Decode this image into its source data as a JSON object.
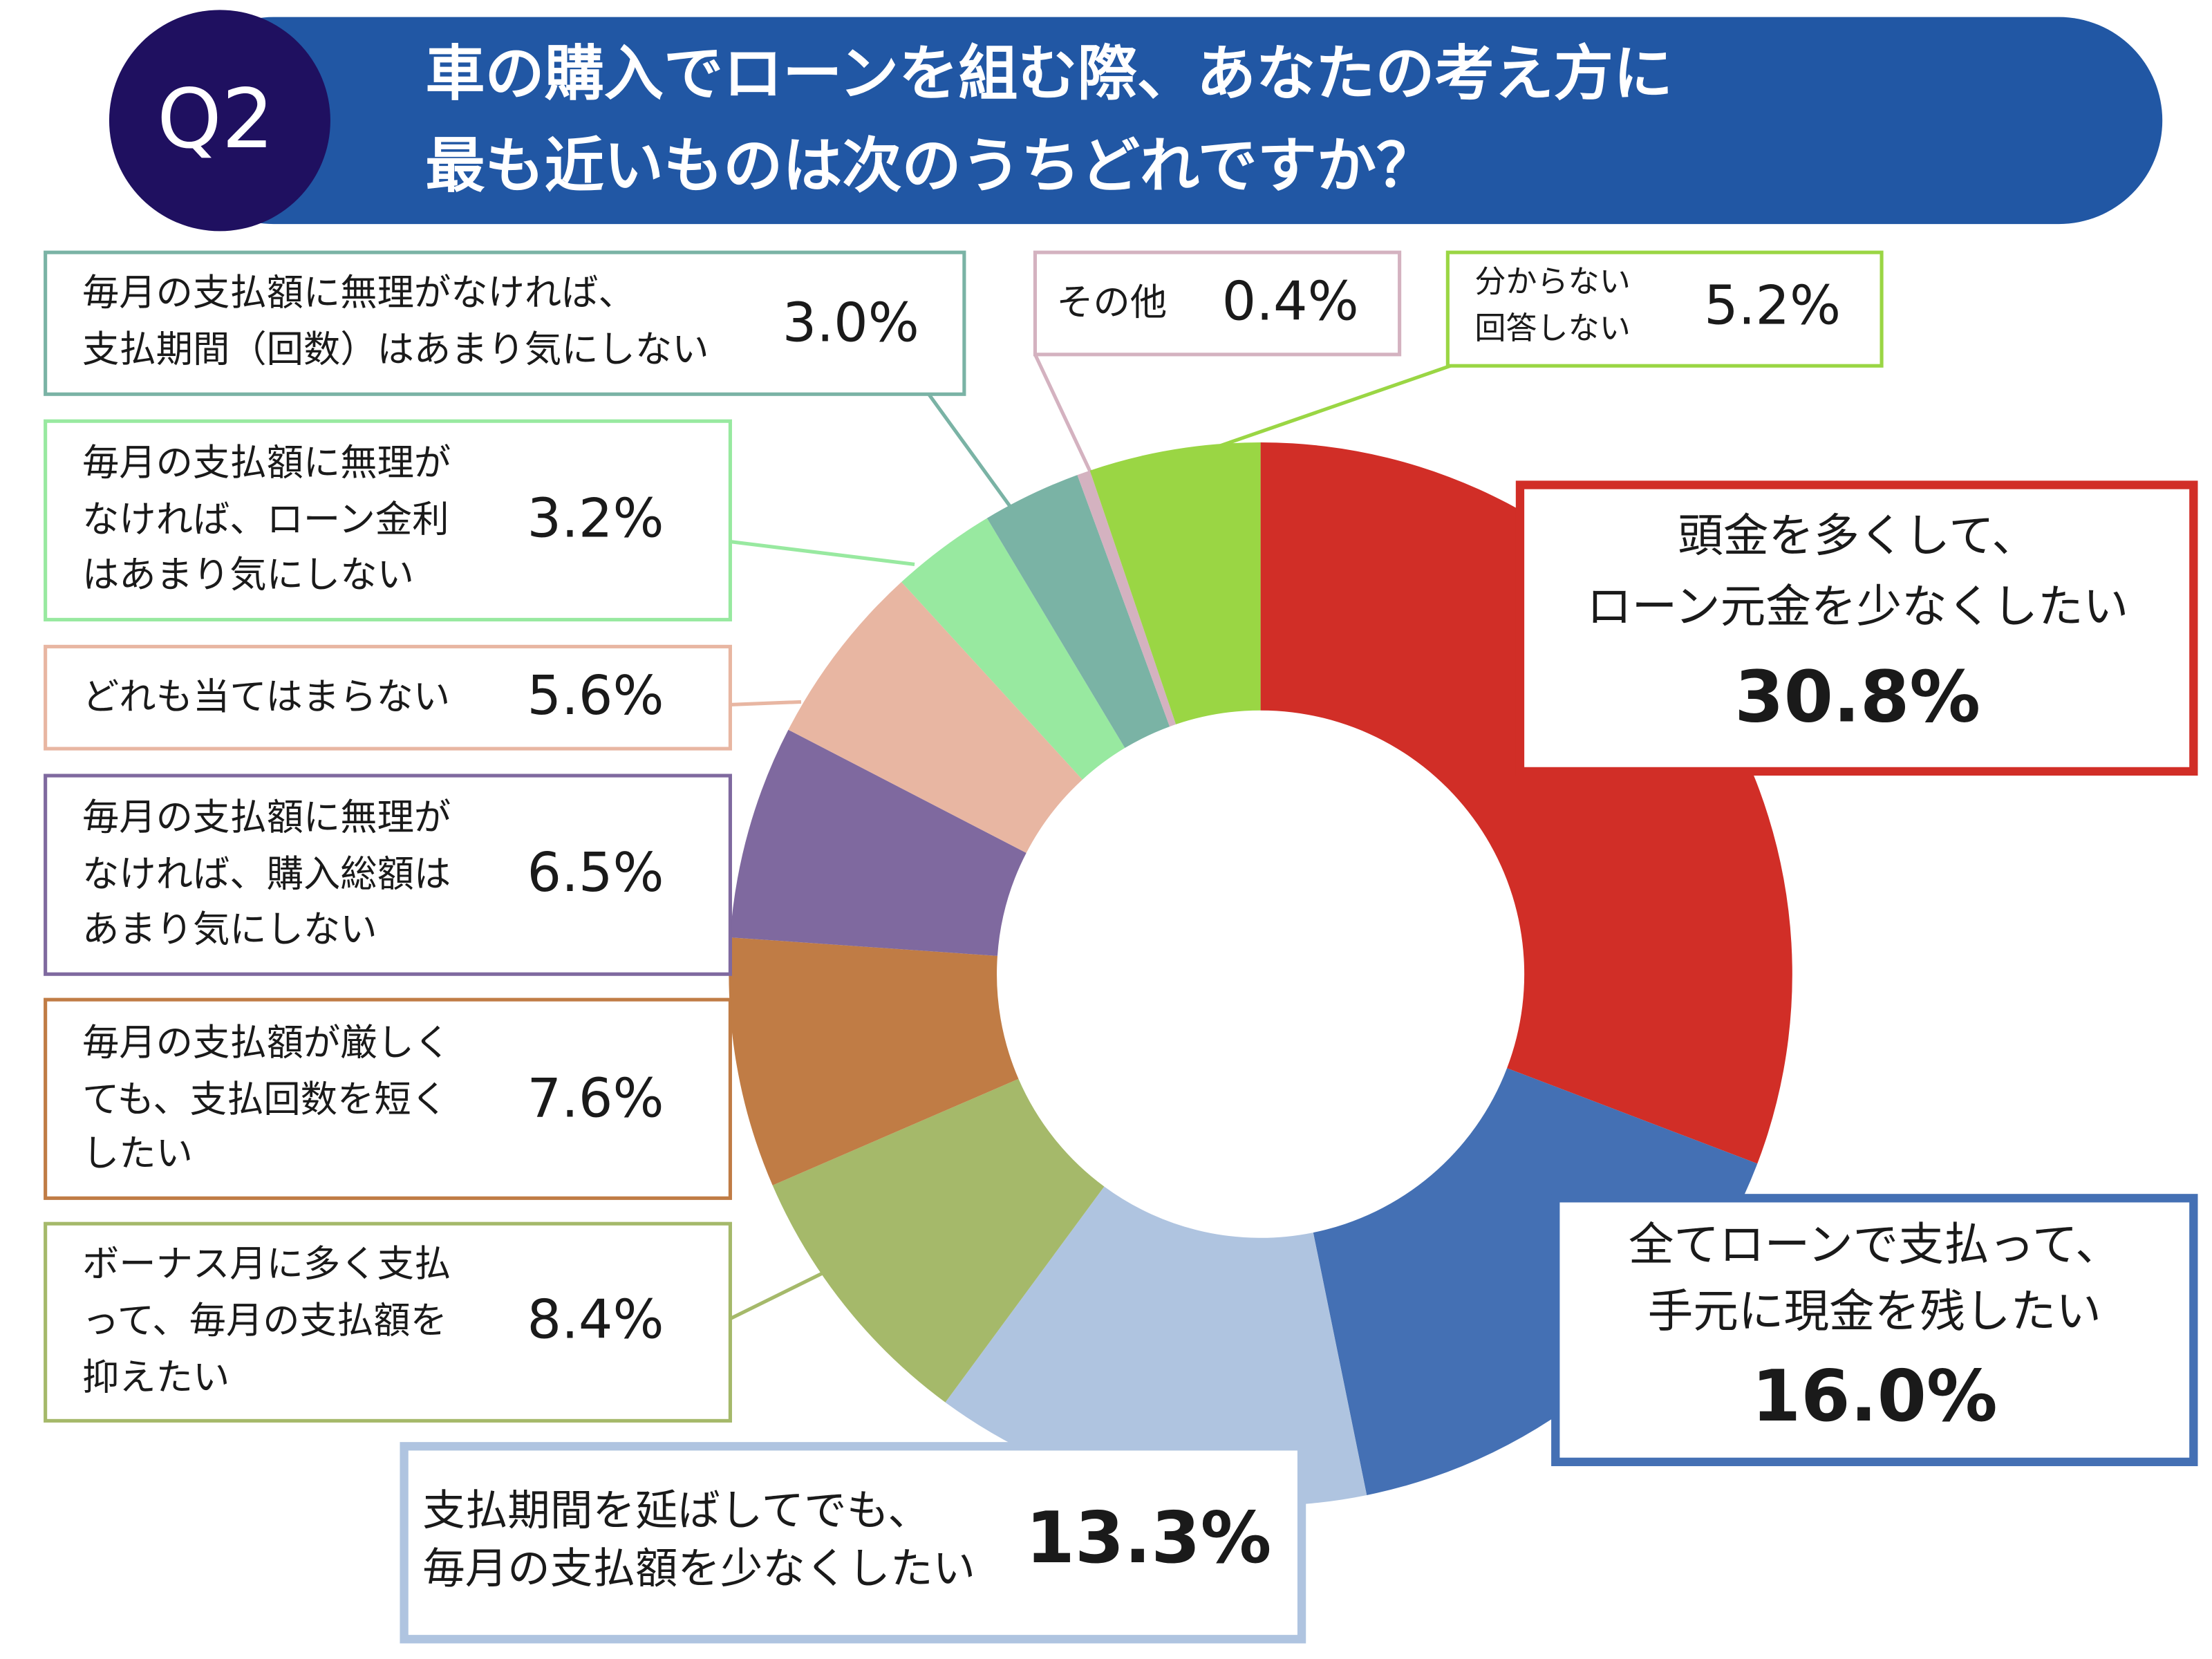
{
  "chart_data": {
    "type": "donut",
    "badge": "Q2",
    "title": [
      "車の購入でローンを組む際、あなたの考え方に",
      "最も近いものは次のうちどれですか？"
    ],
    "categories": [
      [
        "頭金を多くして、",
        "ローン元金を少なくしたい"
      ],
      [
        "全てローンで支払って、",
        "手元に現金を残したい"
      ],
      [
        "支払期間を延ばしてでも、",
        "毎月の支払額を少なくしたい"
      ],
      [
        "ボーナス月に多く支払",
        "って、毎月の支払額を",
        "抑えたい"
      ],
      [
        "毎月の支払額が厳しく",
        "ても、支払回数を短く",
        "したい"
      ],
      [
        "毎月の支払額に無理が",
        "なければ、購入総額は",
        "あまり気にしない"
      ],
      [
        "どれも当てはまらない"
      ],
      [
        "毎月の支払額に無理が",
        "なければ、ローン金利",
        "はあまり気にしない"
      ],
      [
        "毎月の支払額に無理がなければ、",
        "支払期間（回数）はあまり気にしない"
      ],
      [
        "その他"
      ],
      [
        "分からない",
        "回答しない"
      ]
    ],
    "values": [
      30.8,
      16.0,
      13.3,
      8.4,
      7.6,
      6.5,
      5.6,
      3.2,
      3.0,
      0.4,
      5.2
    ],
    "value_labels": [
      "30.8%",
      "16.0%",
      "13.3%",
      "8.4%",
      "7.6%",
      "6.5%",
      "5.6%",
      "3.2%",
      "3.0%",
      "0.4%",
      "5.2%"
    ],
    "colors": [
      "#d12e27",
      "#4470b4",
      "#afc4e0",
      "#a5b96a",
      "#c07c45",
      "#7f699f",
      "#e8b6a2",
      "#98e9a0",
      "#7ab3a5",
      "#d4b2c0",
      "#9ad644"
    ]
  }
}
